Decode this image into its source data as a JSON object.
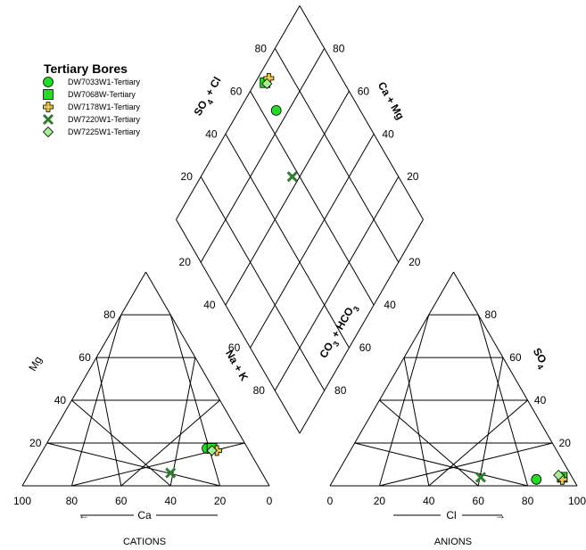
{
  "chart_data": {
    "type": "scatter",
    "diagram": "piper",
    "legend": {
      "title": "Tertiary Bores",
      "placement": "top-left"
    },
    "series": [
      {
        "name": "DW7033W1-Tertiary",
        "marker": "circle",
        "color": "#22dd22",
        "cations": {
          "Ca": 16.5,
          "Mg": 17.5,
          "NaK": 66.0
        },
        "anions": {
          "Cl": 82.0,
          "SO4": 3.0,
          "CO3HCO3": 15.0
        },
        "diamond": {
          "SO4Cl": 85.0,
          "CaMg": 34.0
        }
      },
      {
        "name": "DW7068W-Tertiary",
        "marker": "square",
        "color": "#22dd22",
        "cations": {
          "Ca": 14.5,
          "Mg": 17.5,
          "NaK": 68.0
        },
        "anions": {
          "Cl": 92.0,
          "SO4": 4.0,
          "CO3HCO3": 4.0
        },
        "diamond": {
          "SO4Cl": 96.0,
          "CaMg": 32.0
        }
      },
      {
        "name": "DW7178W1-Tertiary",
        "marker": "cross",
        "color": "#e5c84a",
        "cations": {
          "Ca": 13.0,
          "Mg": 16.5,
          "NaK": 70.5
        },
        "anions": {
          "Cl": 92.5,
          "SO4": 3.0,
          "CO3HCO3": 4.5
        },
        "diamond": {
          "SO4Cl": 95.5,
          "CaMg": 29.5
        }
      },
      {
        "name": "DW7220W1-Tertiary",
        "marker": "x",
        "color": "#2e7d32",
        "cations": {
          "Ca": 37.0,
          "Mg": 6.0,
          "NaK": 57.0
        },
        "anions": {
          "Cl": 59.0,
          "SO4": 4.0,
          "CO3HCO3": 37.0
        },
        "diamond": {
          "SO4Cl": 63.0,
          "CaMg": 43.0
        }
      },
      {
        "name": "DW7225W1-Tertiary",
        "marker": "diamond",
        "color": "#a6ef92",
        "cations": {
          "Ca": 15.0,
          "Mg": 16.5,
          "NaK": 68.5
        },
        "anions": {
          "Cl": 90.0,
          "SO4": 5.0,
          "CO3HCO3": 5.0
        },
        "diamond": {
          "SO4Cl": 95.0,
          "CaMg": 31.5
        }
      }
    ],
    "axes": {
      "ca_label": "Ca",
      "cl_label": "Cl",
      "mg_label": "Mg",
      "nak_label": "Na + K",
      "so4_label": "SO",
      "so4_sub": "4",
      "co3_label_a": "CO",
      "co3_sub_a": "3",
      "co3_label_b": " + HCO",
      "co3_sub_b": "3",
      "so4cl_label_a": "SO",
      "so4cl_sub": "4",
      "so4cl_label_b": " + Cl",
      "camg_label": "Ca + Mg",
      "arrow_left": "←",
      "arrow_right": "→"
    },
    "captions": {
      "left": "CATIONS",
      "right": "ANIONS"
    },
    "ticks": {
      "cation_bottom": [
        "100",
        "80",
        "60",
        "40",
        "20",
        "0"
      ],
      "anion_bottom": [
        "0",
        "20",
        "40",
        "60",
        "80",
        "100"
      ],
      "mg_ticks": [
        "20",
        "40",
        "60",
        "80"
      ],
      "so4_ticks": [
        "20",
        "40",
        "60",
        "80"
      ],
      "diamond_ticks": [
        "20",
        "40",
        "60",
        "80"
      ]
    }
  }
}
